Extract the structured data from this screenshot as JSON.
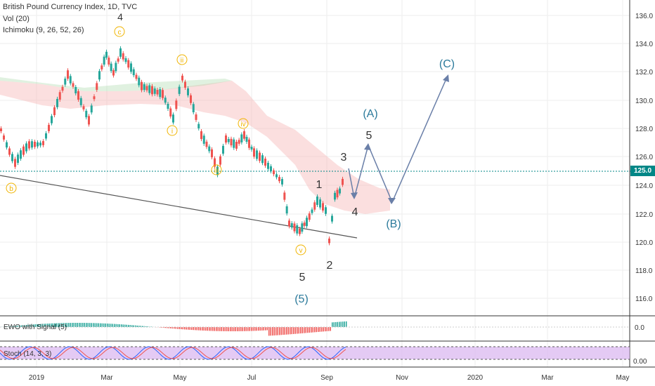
{
  "legend": {
    "title": "British Pound Currency Index, 1D, TVC",
    "volume": "Vol (20)",
    "ichimoku": "Ichimoku (9, 26, 52, 26)"
  },
  "panes": {
    "ewo": "EWO with Signal (5)",
    "stoch": "Stoch (14, 3, 3)"
  },
  "price_axis": {
    "ticks": [
      "136.0",
      "134.0",
      "132.0",
      "130.0",
      "128.0",
      "126.0",
      "124.0",
      "122.0",
      "120.0",
      "118.0",
      "116.0"
    ],
    "ewo_tick": "0.0",
    "stoch_tick": "0.00",
    "current_price": "125.0"
  },
  "time_axis": {
    "ticks": [
      "2019",
      "Mar",
      "May",
      "Jul",
      "Sep",
      "Nov",
      "2020",
      "Mar",
      "May"
    ]
  },
  "wave_labels": {
    "minor": [
      "b",
      "c",
      "ii",
      "i",
      "iii",
      "iv",
      "v"
    ],
    "minor_4": "4",
    "intermediate": [
      "1",
      "2",
      "3",
      "4",
      "5",
      "5"
    ],
    "primary": [
      "(5)",
      "(A)",
      "(B)",
      "(C)"
    ]
  },
  "colors": {
    "candle_up": "#26a69a",
    "candle_down": "#ef5350",
    "wave_circle": "#f0b400",
    "projection": "#6a7fa8",
    "primary_label": "#2b7a9b",
    "cloud": "#f7b7b7",
    "stoch_band": "#d8b4f0",
    "current_price_line": "#008787"
  }
}
